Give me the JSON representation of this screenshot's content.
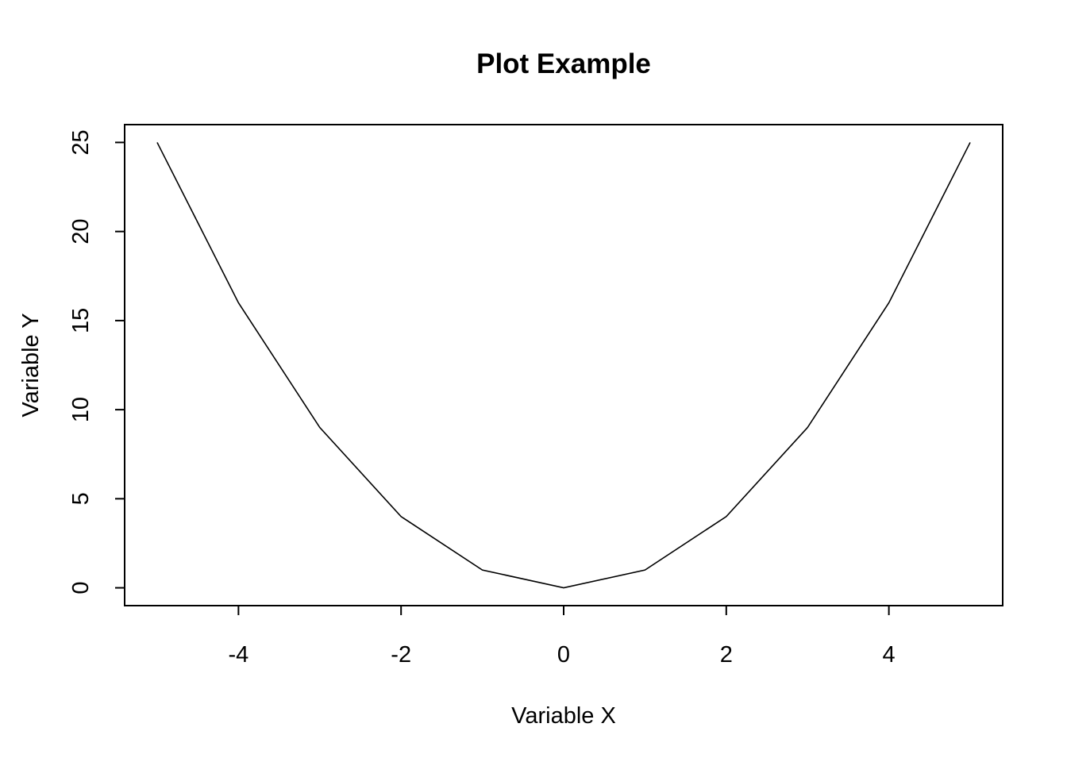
{
  "chart_data": {
    "type": "line",
    "title": "Plot Example",
    "xlabel": "Variable X",
    "ylabel": "Variable Y",
    "x": [
      -5,
      -4,
      -3,
      -2,
      -1,
      0,
      1,
      2,
      3,
      4,
      5
    ],
    "series": [
      {
        "values": [
          25,
          16,
          9,
          4,
          1,
          0,
          1,
          4,
          9,
          16,
          25
        ],
        "color": "#000000"
      }
    ],
    "xlim": [
      -5.4,
      5.4
    ],
    "ylim": [
      -1,
      26
    ],
    "xticks": [
      -4,
      -2,
      0,
      2,
      4
    ],
    "yticks": [
      0,
      5,
      10,
      15,
      20,
      25
    ],
    "grid": false,
    "legend": "none"
  }
}
